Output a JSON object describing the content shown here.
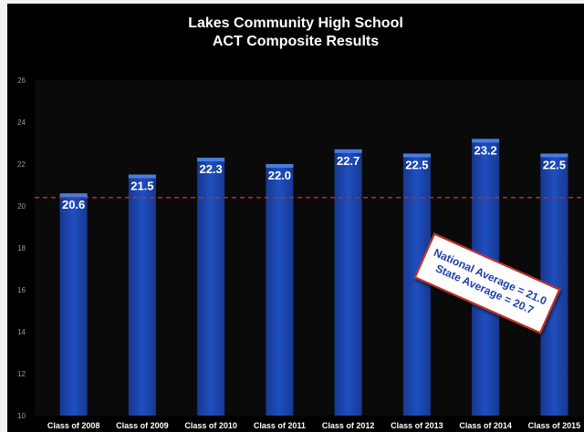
{
  "chart_data": {
    "type": "bar",
    "title_line1": "Lakes Community High School",
    "title_line2": "ACT Composite Results",
    "categories": [
      "Class of 2008",
      "Class of 2009",
      "Class of 2010",
      "Class of 2011",
      "Class of 2012",
      "Class of 2013",
      "Class of 2014",
      "Class of 2015"
    ],
    "values": [
      20.6,
      21.5,
      22.3,
      22.0,
      22.7,
      22.5,
      23.2,
      22.5
    ],
    "value_labels": [
      "20.6",
      "21.5",
      "22.3",
      "22.0",
      "22.7",
      "22.5",
      "23.2",
      "22.5"
    ],
    "ylim": [
      10,
      26
    ],
    "yticks": [
      10,
      12,
      14,
      16,
      18,
      20,
      22,
      24,
      26
    ],
    "reference_line": {
      "value": 20.4,
      "style": "dashed",
      "color": "#d02020"
    },
    "annotation": {
      "line1": "National Average = 21.0",
      "line2": "State Average = 20.7"
    },
    "colors": {
      "bar": "#1f4fc0",
      "bar_top": "#4a7ce0",
      "background": "#000000"
    },
    "grid": false,
    "legend": "none"
  }
}
